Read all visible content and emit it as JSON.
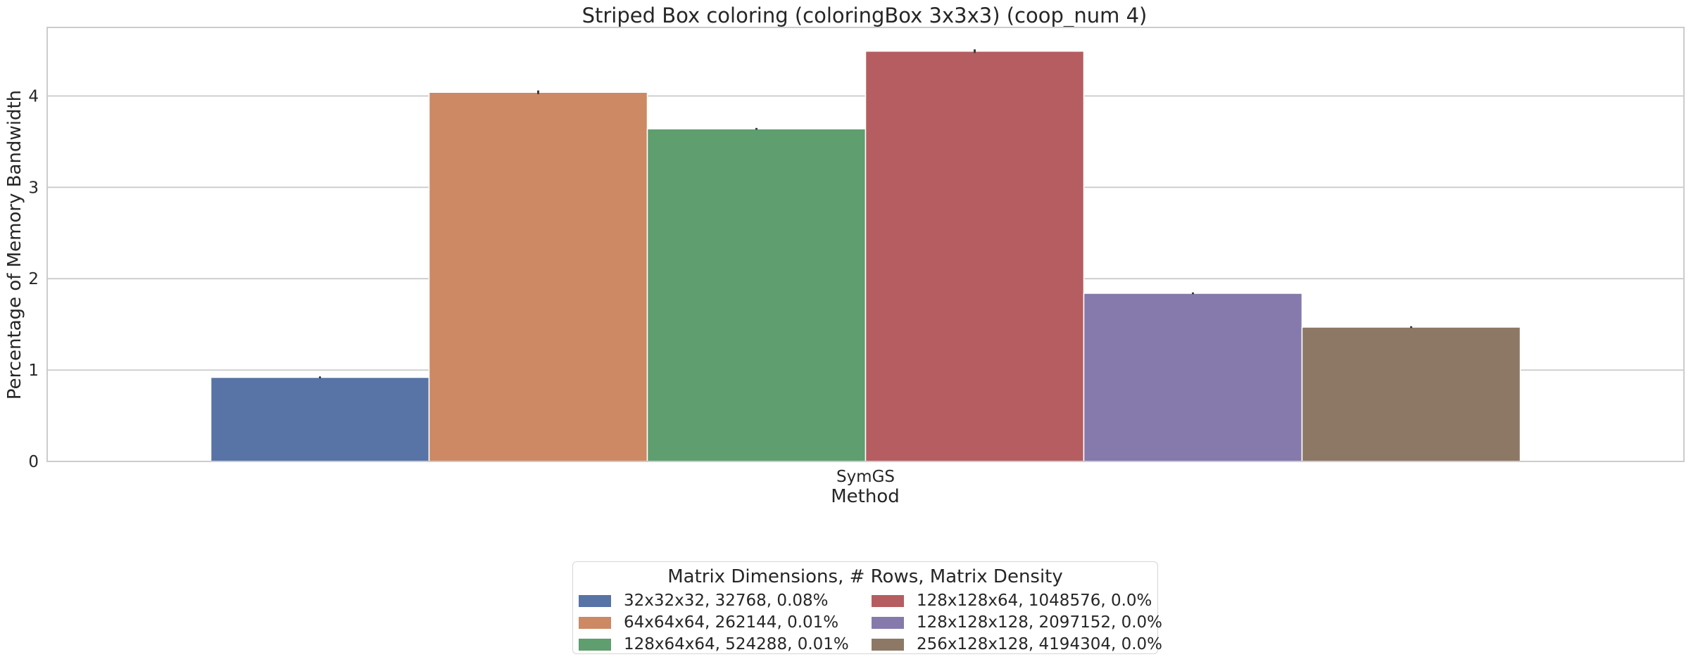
{
  "chart_data": {
    "type": "bar",
    "title": "Striped Box coloring (coloringBox 3x3x3) (coop_num 4)",
    "xlabel": "Method",
    "ylabel": "Percentage of Memory Bandwidth",
    "categories": [
      "SymGS"
    ],
    "ylim": [
      0,
      4.75
    ],
    "yticks": [
      0,
      1,
      2,
      3,
      4
    ],
    "grid": true,
    "legend": {
      "title": "Matrix Dimensions, # Rows, Matrix Density",
      "placement": "bottom-center"
    },
    "series": [
      {
        "name": "32x32x32, 32768, 0.08%",
        "values": [
          0.92
        ],
        "error": [
          0.01
        ],
        "color": "#5873a5"
      },
      {
        "name": "64x64x64, 262144, 0.01%",
        "values": [
          4.04
        ],
        "error": [
          0.02
        ],
        "color": "#cc8963"
      },
      {
        "name": "128x64x64, 524288, 0.01%",
        "values": [
          3.64
        ],
        "error": [
          0.01
        ],
        "color": "#5f9e6e"
      },
      {
        "name": "128x128x64, 1048576, 0.0%",
        "values": [
          4.49
        ],
        "error": [
          0.02
        ],
        "color": "#b55d60"
      },
      {
        "name": "128x128x128, 2097152, 0.0%",
        "values": [
          1.84
        ],
        "error": [
          0.01
        ],
        "color": "#857aab"
      },
      {
        "name": "256x128x128, 4194304, 0.0%",
        "values": [
          1.47
        ],
        "error": [
          0.01
        ],
        "color": "#8d7866"
      }
    ]
  }
}
